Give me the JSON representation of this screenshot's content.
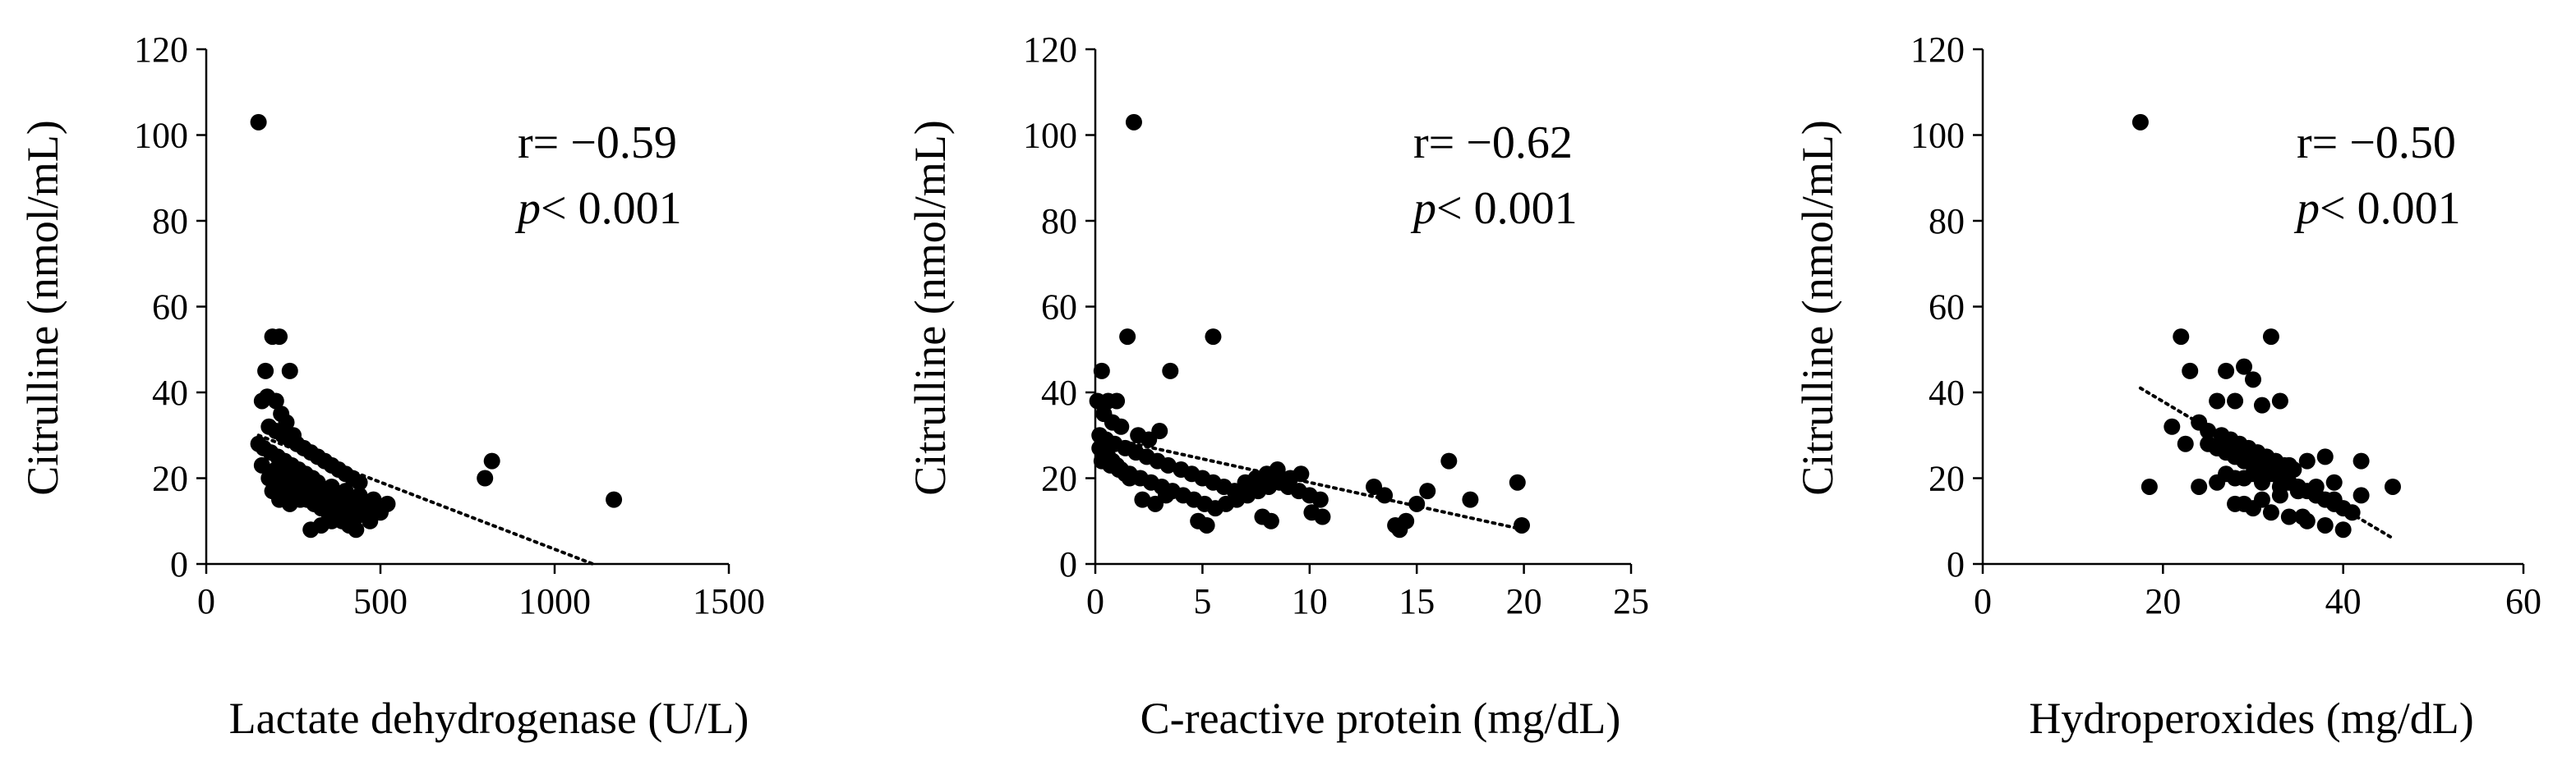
{
  "chart_data": [
    {
      "type": "scatter",
      "id": "ldh",
      "xlabel": "Lactate dehydrogenase (U/L)",
      "ylabel": "Citrulline (nmol/mL)",
      "xlim": [
        0,
        1500
      ],
      "xticks": [
        0,
        500,
        1000,
        1500
      ],
      "ylim": [
        0,
        120
      ],
      "yticks": [
        0,
        20,
        40,
        60,
        80,
        100,
        120
      ],
      "r_text": "r= −0.59",
      "p_label": "p",
      "p_text": "< 0.001",
      "trend": {
        "x": [
          150,
          1110
        ],
        "y": [
          30,
          0
        ]
      },
      "x": [
        150,
        170,
        190,
        210,
        240,
        160,
        175,
        200,
        215,
        230,
        250,
        150,
        165,
        185,
        205,
        225,
        245,
        265,
        285,
        305,
        180,
        200,
        220,
        240,
        260,
        280,
        300,
        320,
        340,
        360,
        380,
        400,
        420,
        440,
        210,
        230,
        250,
        270,
        290,
        310,
        330,
        350,
        370,
        390,
        410,
        430,
        160,
        200,
        240,
        280,
        320,
        360,
        400,
        440,
        480,
        520,
        180,
        220,
        260,
        300,
        340,
        380,
        420,
        460,
        500,
        190,
        230,
        270,
        310,
        350,
        390,
        430,
        470,
        210,
        240,
        300,
        330,
        360,
        390,
        420,
        800,
        820,
        1170
      ],
      "y": [
        103,
        45,
        53,
        53,
        45,
        38,
        39,
        38,
        35,
        33,
        30,
        28,
        27,
        26,
        25,
        24,
        23,
        22,
        21,
        20,
        32,
        31,
        30,
        29,
        28,
        27,
        26,
        25,
        24,
        23,
        22,
        21,
        20,
        19,
        19,
        18,
        17,
        16,
        15,
        14,
        13,
        12,
        11,
        10,
        9,
        8,
        23,
        22,
        21,
        20,
        19,
        18,
        17,
        16,
        15,
        14,
        20,
        19,
        18,
        17,
        16,
        15,
        14,
        13,
        12,
        17,
        16,
        15,
        14,
        13,
        12,
        11,
        10,
        15,
        14,
        8,
        9,
        10,
        11,
        12,
        20,
        24,
        15
      ]
    },
    {
      "type": "scatter",
      "id": "crp",
      "xlabel": "C-reactive protein (mg/dL)",
      "ylabel": "Citrulline (nmol/mL)",
      "xlim": [
        0,
        25
      ],
      "xticks": [
        0,
        5,
        10,
        15,
        20,
        25
      ],
      "ylim": [
        0,
        120
      ],
      "yticks": [
        0,
        20,
        40,
        60,
        80,
        100,
        120
      ],
      "r_text": "r= −0.62",
      "p_label": "p",
      "p_text": "< 0.001",
      "trend": {
        "x": [
          0,
          20
        ],
        "y": [
          30,
          8
        ]
      },
      "x": [
        1.8,
        1.5,
        5.5,
        0.3,
        0.6,
        1.0,
        3.5,
        0.1,
        0.4,
        0.8,
        1.2,
        2.0,
        2.5,
        3.0,
        0.2,
        0.5,
        0.9,
        1.4,
        1.9,
        2.4,
        2.9,
        3.4,
        4.0,
        4.5,
        5.0,
        5.5,
        6.0,
        6.5,
        7.0,
        7.5,
        8.0,
        8.5,
        9.0,
        9.5,
        10.0,
        10.5,
        0.3,
        0.7,
        1.1,
        1.6,
        2.1,
        2.6,
        3.1,
        3.6,
        4.1,
        4.6,
        5.1,
        5.6,
        6.1,
        6.6,
        7.1,
        7.6,
        8.1,
        8.6,
        9.1,
        9.6,
        10.1,
        10.6,
        13.0,
        13.5,
        14.0,
        14.5,
        15.0,
        15.5,
        16.5,
        17.5,
        19.7,
        19.9,
        0.2,
        0.4,
        0.6,
        0.8,
        1.0,
        1.2,
        1.4,
        1.6,
        2.2,
        2.8,
        4.8,
        5.2,
        7.8,
        8.2,
        14.2,
        3.3
      ],
      "y": [
        103,
        53,
        53,
        45,
        38,
        38,
        45,
        38,
        35,
        33,
        32,
        30,
        29,
        31,
        30,
        29,
        28,
        27,
        26,
        25,
        24,
        23,
        22,
        21,
        20,
        19,
        18,
        17,
        19,
        20,
        21,
        22,
        18,
        17,
        16,
        15,
        24,
        23,
        22,
        21,
        20,
        19,
        18,
        17,
        16,
        15,
        14,
        13,
        14,
        15,
        16,
        17,
        18,
        19,
        20,
        21,
        12,
        11,
        18,
        16,
        9,
        10,
        14,
        17,
        24,
        15,
        19,
        9,
        27,
        26,
        25,
        24,
        23,
        22,
        21,
        20,
        15,
        14,
        10,
        9,
        11,
        10,
        8,
        16
      ]
    },
    {
      "type": "scatter",
      "id": "hpo",
      "xlabel": "Hydroperoxides (mg/dL)",
      "ylabel": "Citrulline (nmol/mL)",
      "xlim": [
        0,
        60
      ],
      "xticks": [
        0,
        20,
        40,
        60
      ],
      "ylim": [
        0,
        120
      ],
      "yticks": [
        0,
        20,
        40,
        60,
        80,
        100,
        120
      ],
      "r_text": "r= −0.50",
      "p_label": "p",
      "p_text": "< 0.001",
      "trend": {
        "x": [
          17.5,
          45.5
        ],
        "y": [
          41,
          6
        ]
      },
      "x": [
        17.5,
        22,
        23,
        27,
        29,
        30,
        32,
        26,
        28,
        31,
        33,
        18.5,
        21,
        24,
        25,
        26.5,
        27.5,
        28.5,
        29.5,
        30.5,
        31.5,
        32.5,
        33.5,
        34.5,
        25,
        26,
        27,
        28,
        29,
        30,
        31,
        32,
        33,
        34,
        35,
        36,
        37,
        38,
        39,
        40,
        41,
        42,
        27,
        29,
        31,
        33,
        35,
        37,
        39,
        28,
        30,
        32,
        34,
        36,
        38,
        40,
        42,
        45.5,
        24,
        26,
        28,
        30,
        32,
        34,
        36,
        38,
        29,
        31,
        33,
        35,
        37,
        39,
        35.5,
        22.5,
        26,
        28,
        30,
        32,
        34
      ],
      "y": [
        103,
        53,
        45,
        45,
        46,
        43,
        53,
        38,
        38,
        37,
        38,
        18,
        32,
        33,
        31,
        30,
        29,
        28,
        27,
        26,
        25,
        24,
        23,
        22,
        28,
        27,
        26,
        25,
        24,
        23,
        22,
        21,
        20,
        19,
        18,
        17,
        16,
        15,
        14,
        13,
        12,
        24,
        21,
        20,
        19,
        18,
        17,
        16,
        15,
        14,
        13,
        12,
        11,
        10,
        9,
        8,
        16,
        18,
        18,
        19,
        20,
        21,
        22,
        23,
        24,
        25,
        14,
        15,
        16,
        17,
        18,
        19,
        11,
        28,
        27,
        26,
        25,
        24,
        23
      ]
    }
  ]
}
